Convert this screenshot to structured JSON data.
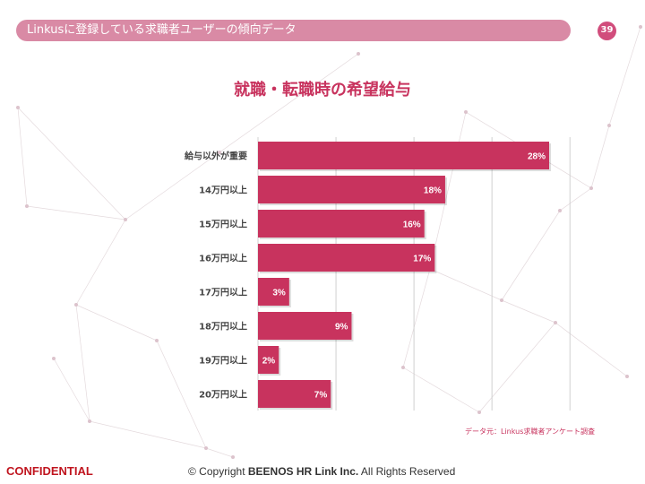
{
  "header": {
    "title": "Linkusに登録している求職者ユーザーの傾向データ",
    "page_number": "39"
  },
  "chart_data": {
    "type": "bar",
    "orientation": "horizontal",
    "title": "就職・転職時の希望給与",
    "categories": [
      "給与以外が重要",
      "14万円以上",
      "15万円以上",
      "16万円以上",
      "17万円以上",
      "18万円以上",
      "19万円以上",
      "20万円以上"
    ],
    "values": [
      28,
      18,
      16,
      17,
      3,
      9,
      2,
      7
    ],
    "value_labels": [
      "28%",
      "18%",
      "16%",
      "17%",
      "3%",
      "9%",
      "2%",
      "7%"
    ],
    "unit": "%",
    "xlim": [
      0,
      30
    ],
    "grid_step": 7.5,
    "grid": true,
    "bar_color": "#c8335e"
  },
  "source": "データ元：Linkus求職者アンケート調査",
  "footer": {
    "confidential": "CONFIDENTIAL",
    "copyright_prefix": "© Copyright ",
    "company": "BEENOS HR Link Inc.",
    "copyright_suffix": " All Rights Reserved"
  }
}
